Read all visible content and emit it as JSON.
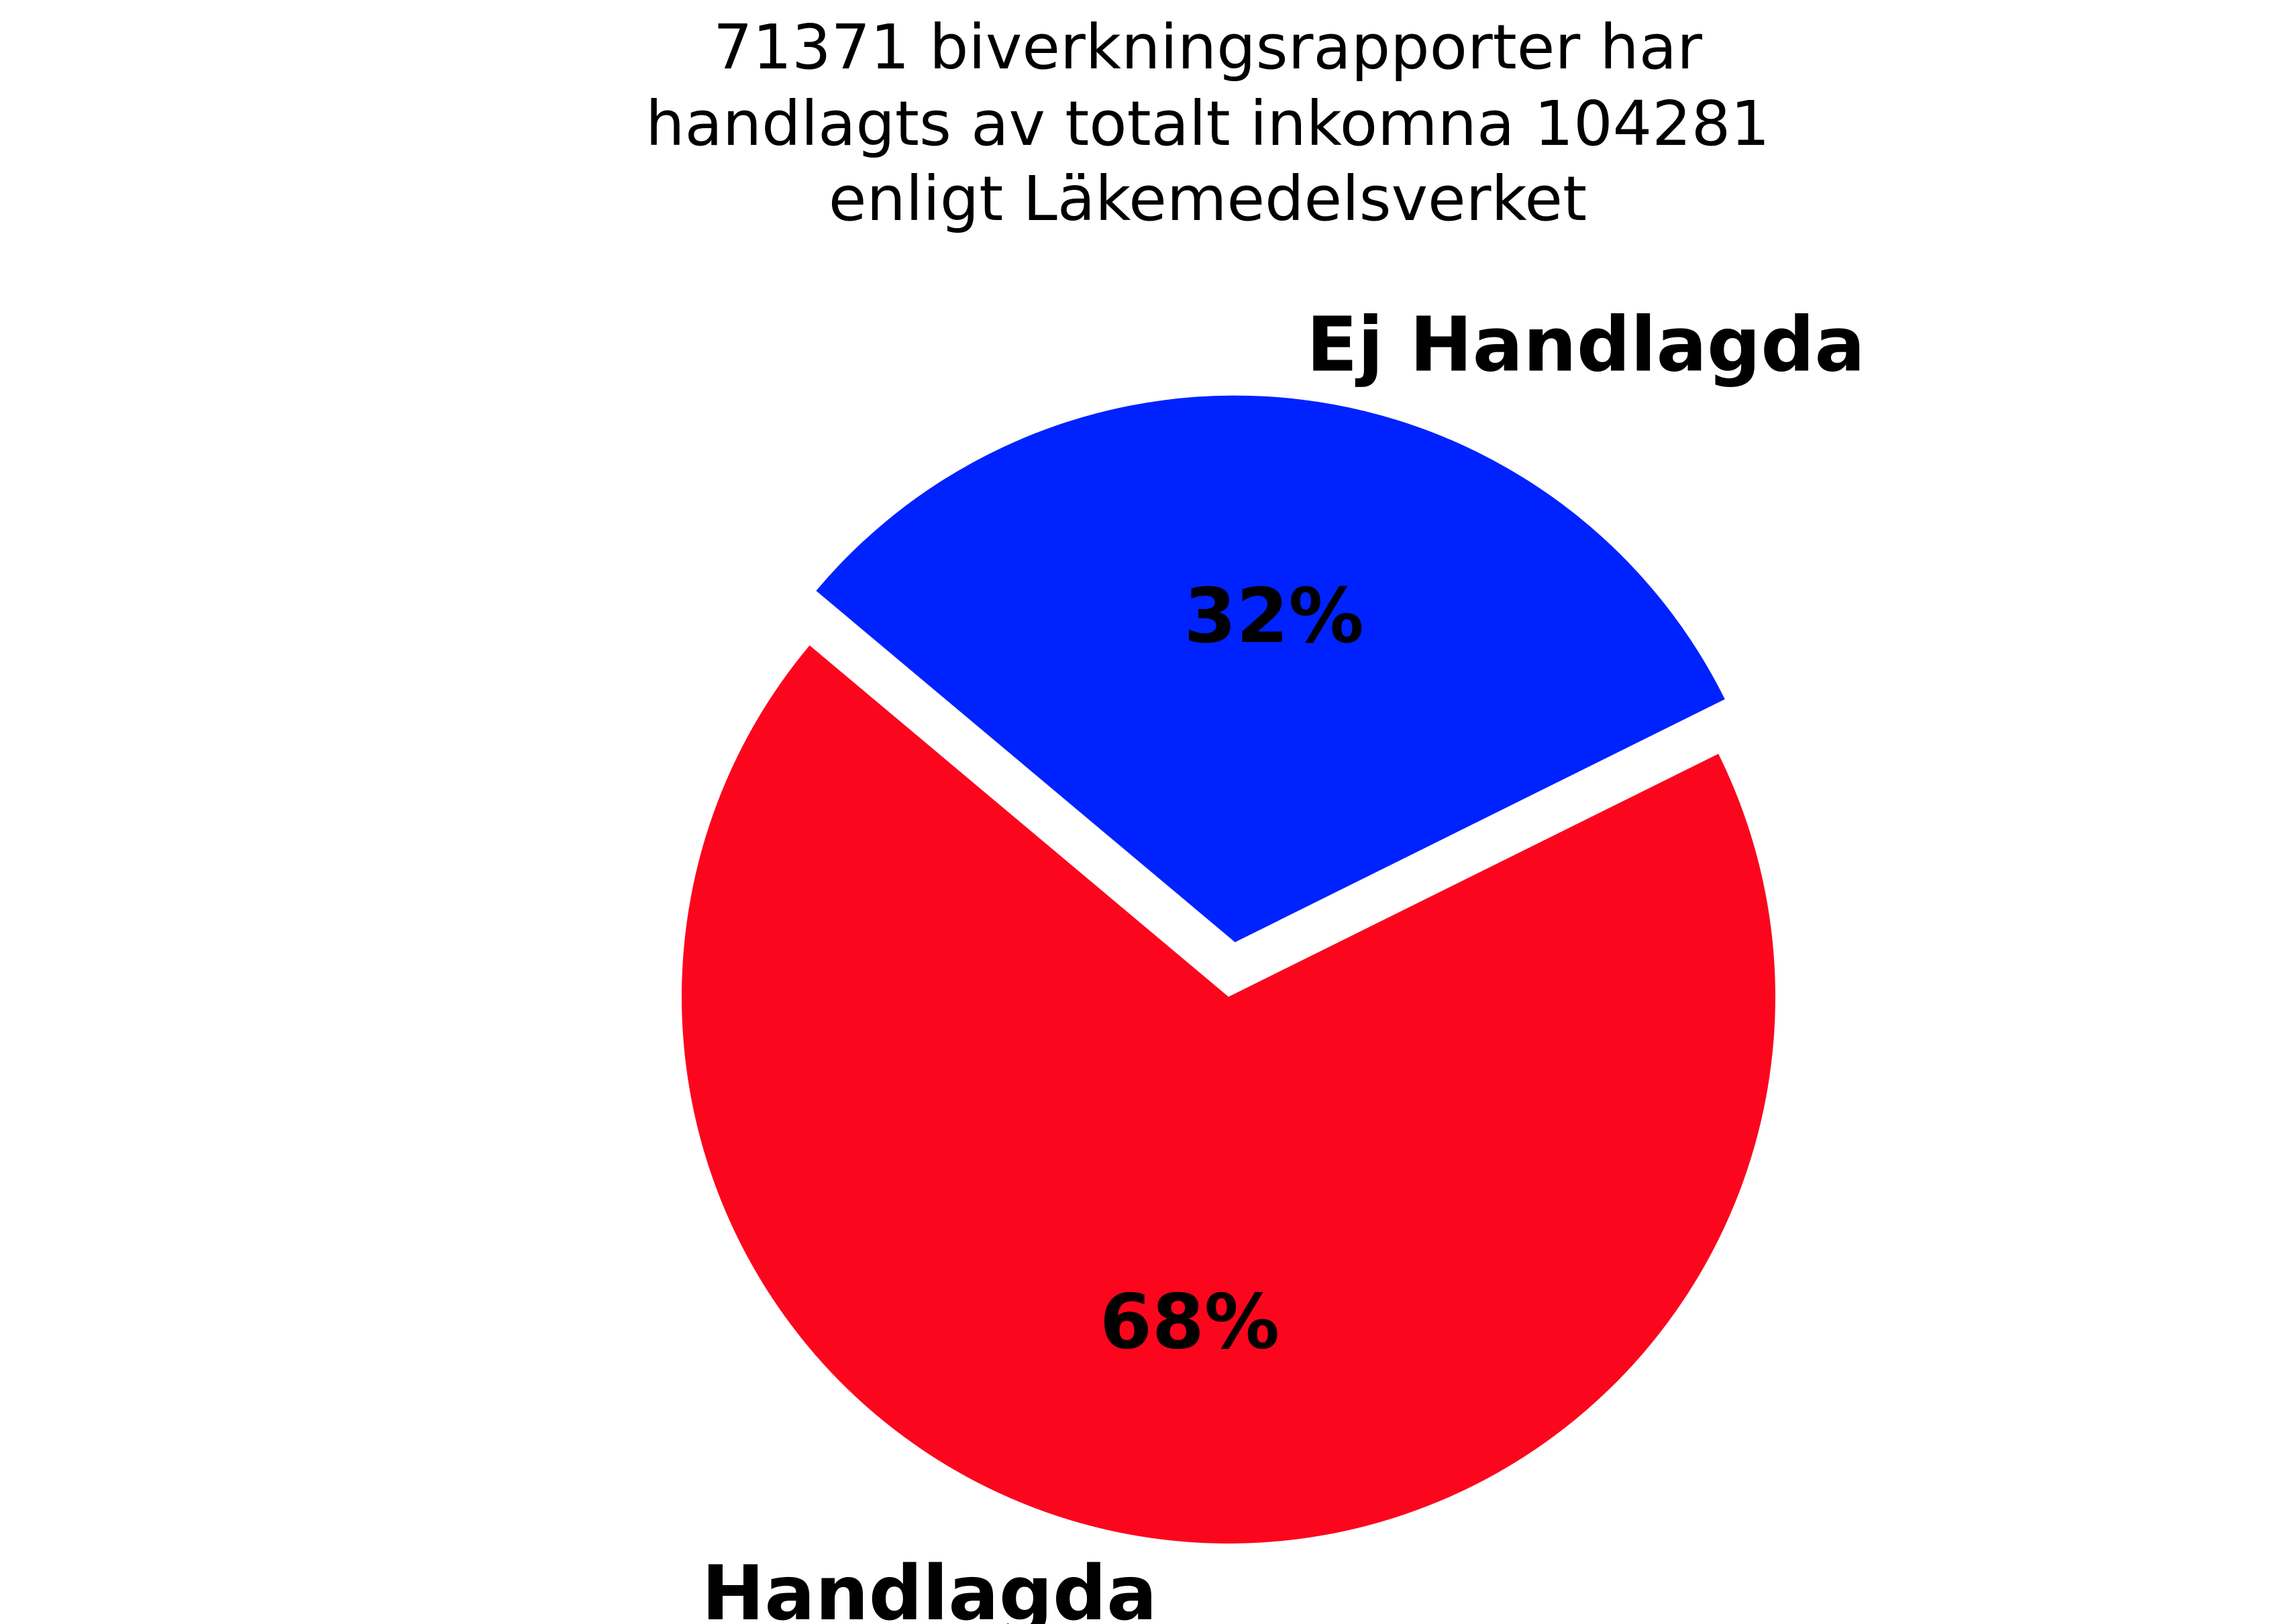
{
  "chart_data": {
    "type": "pie",
    "title": "71371 biverkningsrapporter har handlagts av totalt inkomna 104281 enligt Läkemedelsverket",
    "title_lines": [
      "71371 biverkningsrapporter har",
      "handlagts av totalt inkomna 104281",
      "enligt Läkemedelsverket"
    ],
    "start_angle_deg": 140,
    "counterclock": true,
    "slices": [
      {
        "label": "Handlagda",
        "value": 71371,
        "percent_label": "68%",
        "color": "#fb061d",
        "exploded": false
      },
      {
        "label": "Ej Handlagda",
        "value": 32910,
        "percent_label": "32%",
        "color": "#0022ff",
        "exploded": true
      }
    ],
    "total": 104281,
    "legend": false
  }
}
